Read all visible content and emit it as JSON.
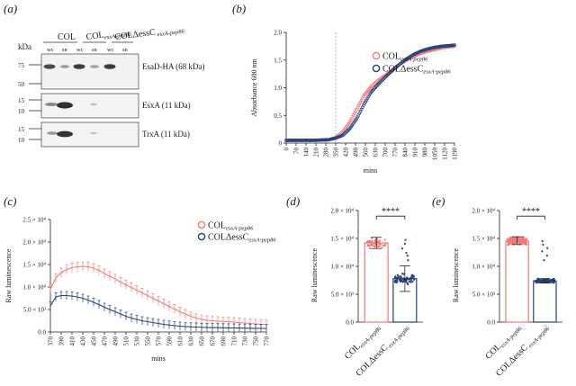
{
  "figure": {
    "panel_labels": [
      "(a)",
      "(b)",
      "(c)",
      "(d)",
      "(e)"
    ]
  },
  "blot": {
    "kda_label": "kDa",
    "group_labels": [
      {
        "main": "COL",
        "sub": ""
      },
      {
        "main": "COL",
        "sub": "esxA-pep86"
      },
      {
        "main": "COLΔessC",
        "sub": " esxA-pep86"
      }
    ],
    "lane_labels": [
      "wc",
      "sn",
      "wc",
      "sn",
      "wc",
      "sn"
    ],
    "rows": [
      {
        "label": "EsaD-HA (68 kDa)",
        "markers": [
          "75",
          "50"
        ]
      },
      {
        "label": "EsxA (11 kDa)",
        "markers": [
          "15",
          "10"
        ]
      },
      {
        "label": "TrxA (11 kDa)",
        "markers": [
          "15",
          "10"
        ]
      }
    ]
  },
  "colors": {
    "col": "#f07b7b",
    "mut": "#24407a"
  },
  "chart_data": [
    {
      "id": "b",
      "type": "line",
      "title": "",
      "xlabel": "mins",
      "ylabel": "Absorbance 600 nm",
      "x_ticks": [
        "0",
        "70",
        "140",
        "210",
        "280",
        "350",
        "420",
        "490",
        "560",
        "630",
        "700",
        "770",
        "840",
        "910",
        "980",
        "1050",
        "1120",
        "1190"
      ],
      "y_ticks": [
        "0",
        "0.5",
        "1.0",
        "1.5",
        "2.0"
      ],
      "xlim": [
        0,
        1190
      ],
      "ylim": [
        0,
        2.0
      ],
      "vline_x": 350,
      "legend": {
        "position": "top-right"
      },
      "series": [
        {
          "name": "COL",
          "sub": "esxA-pep86",
          "x": [
            0,
            100,
            200,
            300,
            350,
            400,
            450,
            500,
            550,
            600,
            650,
            700,
            750,
            800,
            850,
            900,
            950,
            1000,
            1050,
            1100,
            1150,
            1190
          ],
          "values": [
            0.05,
            0.05,
            0.05,
            0.06,
            0.1,
            0.2,
            0.38,
            0.62,
            0.86,
            1.02,
            1.13,
            1.22,
            1.32,
            1.42,
            1.5,
            1.57,
            1.62,
            1.66,
            1.69,
            1.72,
            1.74,
            1.75
          ]
        },
        {
          "name": "COLΔessC",
          "sub": "esxA-pep86",
          "x": [
            0,
            100,
            200,
            300,
            350,
            400,
            450,
            500,
            550,
            600,
            650,
            700,
            750,
            800,
            850,
            900,
            950,
            1000,
            1050,
            1100,
            1150,
            1190
          ],
          "values": [
            0.05,
            0.05,
            0.05,
            0.06,
            0.09,
            0.14,
            0.26,
            0.45,
            0.7,
            0.92,
            1.06,
            1.19,
            1.31,
            1.42,
            1.52,
            1.6,
            1.66,
            1.7,
            1.73,
            1.75,
            1.76,
            1.77
          ]
        }
      ]
    },
    {
      "id": "c",
      "type": "line",
      "title": "",
      "xlabel": "mins",
      "ylabel": "Raw luminescence",
      "x_ticks": [
        "370",
        "390",
        "410",
        "430",
        "450",
        "470",
        "490",
        "510",
        "530",
        "550",
        "570",
        "590",
        "610",
        "630",
        "650",
        "670",
        "690",
        "710",
        "730",
        "750",
        "770"
      ],
      "y_ticks": [
        "0.0",
        "5.0 × 10³",
        "1.0 × 10⁴",
        "1.5 × 10⁴",
        "2.0 × 10⁴",
        "2.5 × 10⁴"
      ],
      "xlim": [
        370,
        770
      ],
      "ylim": [
        0,
        25000
      ],
      "legend": {
        "position": "top-right"
      },
      "series": [
        {
          "name": "COL",
          "sub": "esxA-pep86",
          "x": [
            370,
            380,
            390,
            400,
            410,
            420,
            430,
            440,
            450,
            460,
            470,
            480,
            490,
            500,
            510,
            520,
            530,
            540,
            550,
            560,
            570,
            580,
            590,
            600,
            610,
            620,
            630,
            640,
            650,
            660,
            670,
            680,
            690,
            700,
            710,
            720,
            730,
            740,
            750,
            760,
            770
          ],
          "values": [
            9500,
            12000,
            13200,
            13900,
            14300,
            14500,
            14600,
            14500,
            14200,
            13700,
            13000,
            12400,
            11800,
            11100,
            10500,
            9900,
            9300,
            8700,
            8100,
            7500,
            6900,
            6300,
            5700,
            5100,
            4500,
            4000,
            3500,
            3100,
            2800,
            2600,
            2500,
            2400,
            2350,
            2300,
            2200,
            2100,
            2000,
            1900,
            1800,
            1700,
            1650
          ]
        },
        {
          "name": "COLΔessC",
          "sub": "esxA-pep86",
          "x": [
            370,
            380,
            390,
            400,
            410,
            420,
            430,
            440,
            450,
            460,
            470,
            480,
            490,
            500,
            510,
            520,
            530,
            540,
            550,
            560,
            570,
            580,
            590,
            600,
            610,
            620,
            630,
            640,
            650,
            660,
            670,
            680,
            690,
            700,
            710,
            720,
            730,
            740,
            750,
            760,
            770
          ],
          "values": [
            5800,
            7800,
            8100,
            8100,
            8000,
            7800,
            7500,
            7100,
            6600,
            6100,
            5500,
            5000,
            4500,
            4000,
            3500,
            3100,
            2800,
            2500,
            2300,
            2100,
            1900,
            1700,
            1550,
            1400,
            1300,
            1200,
            1150,
            1100,
            1050,
            1000,
            980,
            960,
            940,
            920,
            900,
            880,
            860,
            840,
            820,
            800,
            780
          ]
        }
      ]
    },
    {
      "id": "d",
      "type": "bar",
      "title": "",
      "ylabel": "Raw luminescence",
      "categories": [
        {
          "main": "COL",
          "sub": "esxA-pep86"
        },
        {
          "main": "COLΔessC",
          "sub": " esxA-pep86"
        }
      ],
      "values": [
        14200,
        7800
      ],
      "errors": [
        1000,
        2300
      ],
      "y_ticks": [
        "0.0",
        "5.0 × 10³",
        "1.0 × 10⁴",
        "1.5 × 10⁴",
        "2.0 × 10⁴"
      ],
      "ylim": [
        0,
        20000
      ],
      "significance": "****"
    },
    {
      "id": "e",
      "type": "bar",
      "title": "",
      "ylabel": "Raw luminescence",
      "categories": [
        {
          "main": "COL",
          "sub": "esxA-pep86"
        },
        {
          "main": "COLΔessC",
          "sub": " esxA-pep86"
        }
      ],
      "values": [
        14600,
        7400
      ],
      "errors": [
        700,
        400
      ],
      "y_ticks": [
        "0.0",
        "5.0 × 10³",
        "1.0 × 10⁴",
        "1.5 × 10⁴",
        "2.0 × 10⁴"
      ],
      "ylim": [
        0,
        20000
      ],
      "significance": "****"
    }
  ]
}
